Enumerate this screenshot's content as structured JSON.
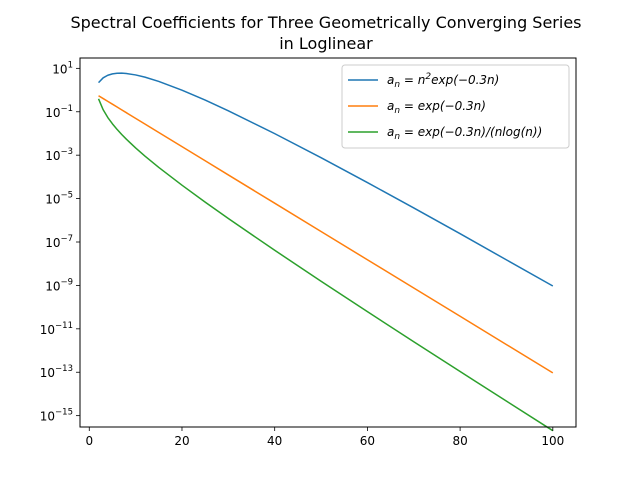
{
  "chart_data": {
    "type": "line",
    "title_line1": "Spectral Coefficients for Three Geometrically Converging Series",
    "title_line2": "in Loglinear",
    "xlabel": "",
    "ylabel": "",
    "yscale": "log",
    "xlim": [
      -2,
      105
    ],
    "ylim": [
      3e-16,
      30
    ],
    "x_ticks": [
      0,
      20,
      40,
      60,
      80,
      100
    ],
    "x_tick_labels": [
      "0",
      "20",
      "40",
      "60",
      "80",
      "100"
    ],
    "y_tick_exponents": [
      1,
      -1,
      -3,
      -5,
      -7,
      -9,
      -11,
      -13,
      -15
    ],
    "y_tick_base": "10",
    "grid": false,
    "legend_placement": "upper right",
    "x": [
      2,
      3,
      4,
      5,
      6,
      7,
      8,
      10,
      12,
      15,
      20,
      25,
      30,
      40,
      50,
      60,
      70,
      80,
      90,
      100
    ],
    "series": [
      {
        "name": "a_n = n^2 exp(-0.3n)",
        "legend_main": "a",
        "legend_sub": "n",
        "legend_rest_pre": " = n",
        "legend_sup": "2",
        "legend_rest_post": "exp(−0.3n)",
        "color": "#1f77b4",
        "values": [
          2.195,
          3.659,
          4.819,
          5.578,
          5.95,
          6.001,
          5.806,
          4.979,
          3.935,
          2.499,
          0.991,
          0.3456,
          0.1111,
          0.00985,
          0.000765,
          5.48e-05,
          3.7e-06,
          2.418e-07,
          1.5e-08,
          9.4e-10
        ]
      },
      {
        "name": "a_n = exp(-0.3n)",
        "legend_main": "a",
        "legend_sub": "n",
        "legend_rest_pre": " = exp(−0.3n)",
        "legend_sup": "",
        "legend_rest_post": "",
        "color": "#ff7f0e",
        "values": [
          0.5488,
          0.4066,
          0.3012,
          0.2231,
          0.1653,
          0.1225,
          0.0907,
          0.0498,
          0.0273,
          0.0111,
          0.00248,
          0.000553,
          0.000123,
          6.14e-06,
          3.06e-07,
          1.52e-08,
          7.58e-10,
          3.78e-11,
          1.88e-12,
          9.36e-14
        ]
      },
      {
        "name": "a_n = exp(-0.3n)/(nlog(n))",
        "legend_main": "a",
        "legend_sub": "n",
        "legend_rest_pre": " = exp(−0.3n)/(nlog(n))",
        "legend_sup": "",
        "legend_rest_post": "",
        "color": "#2ca02c",
        "values": [
          0.3959,
          0.1234,
          0.0543,
          0.0277,
          0.01538,
          0.00899,
          0.00545,
          0.002163,
          0.000915,
          0.000273,
          4.14e-05,
          6.87e-06,
          1.206e-06,
          4.16e-08,
          1.566e-09,
          6.19e-11,
          2.55e-12,
          1.078e-13,
          4.64e-15,
          2.03e-16
        ]
      }
    ]
  }
}
